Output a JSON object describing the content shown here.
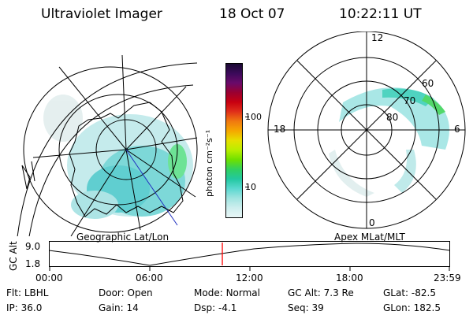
{
  "header": {
    "instrument": "Ultraviolet Imager",
    "date": "18 Oct 07",
    "time": "10:22:11 UT"
  },
  "left_panel": {
    "label": "Geographic Lat/Lon"
  },
  "right_panel": {
    "label": "Apex MLat/MLT",
    "mlt_labels": [
      "12",
      "18",
      "6",
      "0"
    ],
    "mlat_labels": [
      "60",
      "70",
      "80"
    ]
  },
  "colorbar": {
    "unit_label": "photon cm⁻²s⁻¹",
    "ticks": [
      "100",
      "10"
    ],
    "colors": [
      "#1a0a33",
      "#3b0a5a",
      "#6a0a6a",
      "#9a0030",
      "#c80010",
      "#e0301a",
      "#f07a10",
      "#f5a800",
      "#e6e000",
      "#b8ee00",
      "#6ee000",
      "#30d060",
      "#22c8a0",
      "#5ad8d0",
      "#a0e4e0",
      "#cdeeee",
      "#e8f6f6"
    ]
  },
  "timeline": {
    "axis_label": "GC Alt",
    "y_ticks": [
      "9.0",
      "1.8"
    ],
    "x_ticks": [
      "00:00",
      "06:00",
      "12:00",
      "18:00",
      "23:59"
    ],
    "marker_color": "#ff0000",
    "marker_fraction": 0.432
  },
  "footer": {
    "row1": [
      {
        "label": "Flt:",
        "value": "LBHL"
      },
      {
        "label": "Door:",
        "value": "Open"
      },
      {
        "label": "Mode:",
        "value": "Normal"
      },
      {
        "label": "GC Alt:",
        "value": "7.3 Re"
      },
      {
        "label": "GLat:",
        "value": "-82.5"
      }
    ],
    "row2": [
      {
        "label": "IP:",
        "value": "36.0"
      },
      {
        "label": "Gain:",
        "value": "14"
      },
      {
        "label": "Dsp:",
        "value": "-4.1"
      },
      {
        "label": "Seq:",
        "value": "39"
      },
      {
        "label": "GLon:",
        "value": "182.5"
      }
    ]
  }
}
